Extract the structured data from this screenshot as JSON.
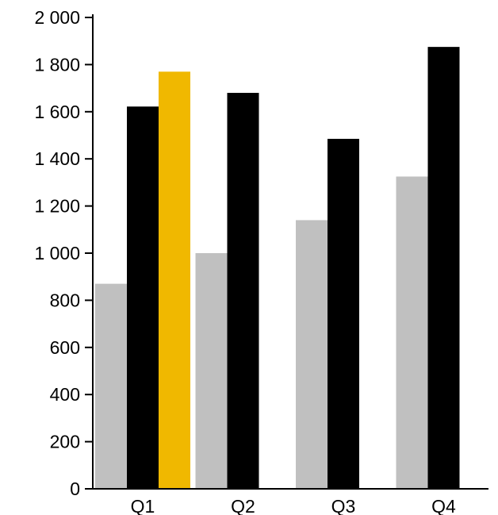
{
  "chart_data": {
    "type": "bar",
    "categories": [
      "Q1",
      "Q2",
      "Q3",
      "Q4"
    ],
    "series": [
      {
        "values": [
          870,
          1000,
          1140,
          1325
        ],
        "color": "#c0c0c0"
      },
      {
        "values": [
          1622,
          1680,
          1485,
          1875
        ],
        "color": "#000000"
      },
      {
        "values": [
          1770,
          null,
          null,
          null
        ],
        "color": "#f0b800"
      }
    ],
    "ylim": [
      0,
      2000
    ],
    "yticks": [
      0,
      200,
      400,
      600,
      800,
      1000,
      1200,
      1400,
      1600,
      1800,
      2000
    ],
    "ytick_labels": [
      "0",
      "200",
      "400",
      "600",
      "800",
      "1 000",
      "1 200",
      "1 400",
      "1 600",
      "1 800",
      "2 000"
    ],
    "title": "",
    "xlabel": "",
    "ylabel": "",
    "grid": false,
    "legend": "none"
  }
}
